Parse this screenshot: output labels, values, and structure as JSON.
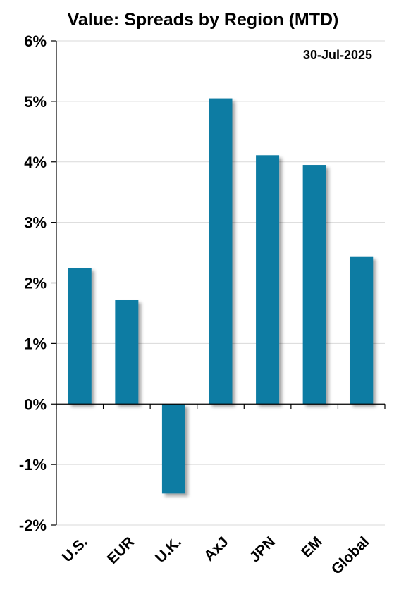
{
  "chart_data": {
    "type": "bar",
    "title": "Value: Spreads by Region (MTD)",
    "annotation": "30-Jul-2025",
    "categories": [
      "U.S.",
      "EUR",
      "U.K.",
      "AxJ",
      "JPN",
      "EM",
      "Global"
    ],
    "values": [
      2.25,
      1.72,
      -1.48,
      5.05,
      4.11,
      3.95,
      2.44
    ],
    "value_unit": "%",
    "ylim": [
      -2,
      6
    ],
    "yticks": [
      -2,
      -1,
      0,
      1,
      2,
      3,
      4,
      5,
      6
    ],
    "ytick_labels": [
      "-2%",
      "-1%",
      "0%",
      "1%",
      "2%",
      "3%",
      "4%",
      "5%",
      "6%"
    ],
    "xlabel": "",
    "ylabel": "",
    "grid": true,
    "legend": "none",
    "bar_color": "#0e7ba3"
  }
}
